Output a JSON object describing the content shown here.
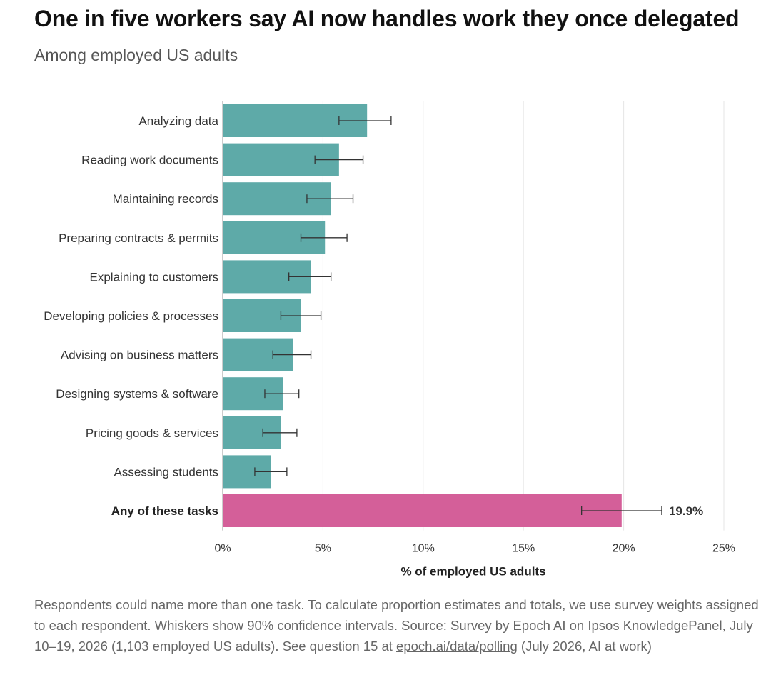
{
  "header": {
    "title": "One in five workers say AI now handles work they once delegated",
    "subtitle": "Among employed US adults"
  },
  "footnote": {
    "text": "Respondents could name more than one task. To calculate proportion estimates and totals, we use survey weights assigned to each respondent. Whiskers show 90% confidence intervals. Source: Survey by Epoch AI on Ipsos KnowledgePanel, July 10–19, 2026 (1,103 employed US adults). See question 15 at ",
    "link_text": "epoch.ai/data/polling",
    "suffix": " (July 2026, AI at work)"
  },
  "colors": {
    "bar": "#5eaaa8",
    "total_bar": "#d45f99",
    "whisker": "#333333",
    "grid": "#e6e6e6"
  },
  "chart_data": {
    "type": "bar",
    "orientation": "horizontal",
    "categories": [
      "Analyzing data",
      "Reading work documents",
      "Maintaining records",
      "Preparing contracts & permits",
      "Explaining to customers",
      "Developing policies & processes",
      "Advising on business matters",
      "Designing systems & software",
      "Pricing goods & services",
      "Assessing students",
      "Any of these tasks"
    ],
    "values": [
      7.2,
      5.8,
      5.4,
      5.1,
      4.4,
      3.9,
      3.5,
      3.0,
      2.9,
      2.4,
      19.9
    ],
    "ci_low": [
      5.8,
      4.6,
      4.2,
      3.9,
      3.3,
      2.9,
      2.5,
      2.1,
      2.0,
      1.6,
      17.9
    ],
    "ci_high": [
      8.4,
      7.0,
      6.5,
      6.2,
      5.4,
      4.9,
      4.4,
      3.8,
      3.7,
      3.2,
      21.9
    ],
    "highlight_index": 10,
    "data_labels": [
      "",
      "",
      "",
      "",
      "",
      "",
      "",
      "",
      "",
      "",
      "19.9%"
    ],
    "xlabel": "% of employed US adults",
    "xlim": [
      0,
      25
    ],
    "xticks": [
      0,
      5,
      10,
      15,
      20,
      25
    ],
    "xtick_labels": [
      "0%",
      "5%",
      "10%",
      "15%",
      "20%",
      "25%"
    ],
    "grid": "vertical"
  }
}
